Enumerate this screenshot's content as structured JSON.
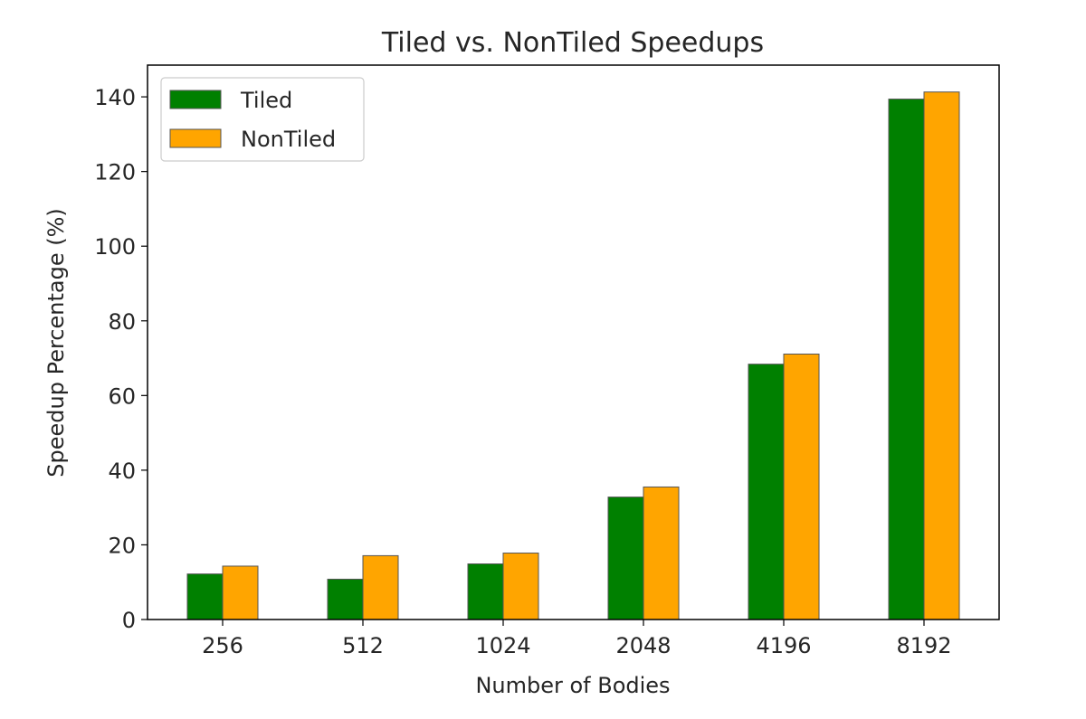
{
  "chart_data": {
    "type": "bar",
    "title": "Tiled vs. NonTiled Speedups",
    "xlabel": "Number of Bodies",
    "ylabel": "Speedup Percentage (%)",
    "categories": [
      "256",
      "512",
      "1024",
      "2048",
      "4196",
      "8192"
    ],
    "series": [
      {
        "name": "Tiled",
        "color": "#008000",
        "values": [
          12.2,
          10.8,
          14.9,
          32.8,
          68.4,
          139.4
        ]
      },
      {
        "name": "NonTiled",
        "color": "#ffa500",
        "values": [
          14.3,
          17.1,
          17.8,
          35.5,
          71.1,
          141.3
        ]
      }
    ],
    "ylim": [
      0,
      148.5
    ],
    "yticks": [
      0,
      20,
      40,
      60,
      80,
      100,
      120,
      140
    ],
    "grid": false,
    "legend_position": "top-left",
    "bar_edge_color": "#555555"
  }
}
